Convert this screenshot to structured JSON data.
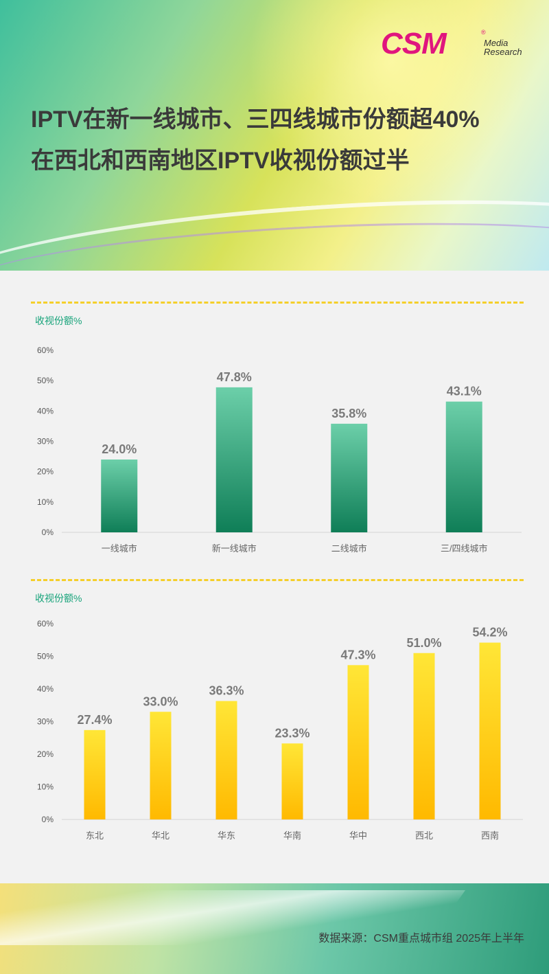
{
  "logo": {
    "brand": "CSM",
    "mark": "®",
    "line1": "Media",
    "line2": "Research"
  },
  "title": {
    "line1": "IPTV在新一线城市、三四线城市份额超40%",
    "line2": "在西北和西南地区IPTV收视份额过半"
  },
  "colors": {
    "green_top": "#6ccfa9",
    "green_bottom": "#0f7e57",
    "yellow_top": "#ffe637",
    "yellow_bottom": "#ffb900",
    "title_green": "#17a37a",
    "dashed": "#f5cf2a"
  },
  "chart_data": [
    {
      "type": "bar",
      "ylabel": "收视份额%",
      "ylim": [
        0,
        60
      ],
      "yticks": [
        "0%",
        "10%",
        "20%",
        "30%",
        "40%",
        "50%",
        "60%"
      ],
      "categories": [
        "一线城市",
        "新一线城市",
        "二线城市",
        "三/四线城市"
      ],
      "values": [
        24.0,
        47.8,
        35.8,
        43.1
      ],
      "labels": [
        "24.0%",
        "47.8%",
        "35.8%",
        "43.1%"
      ],
      "grid": false
    },
    {
      "type": "bar",
      "ylabel": "收视份额%",
      "ylim": [
        0,
        60
      ],
      "yticks": [
        "0%",
        "10%",
        "20%",
        "30%",
        "40%",
        "50%",
        "60%"
      ],
      "categories": [
        "东北",
        "华北",
        "华东",
        "华南",
        "华中",
        "西北",
        "西南"
      ],
      "values": [
        27.4,
        33.0,
        36.3,
        23.3,
        47.3,
        51.0,
        54.2
      ],
      "labels": [
        "27.4%",
        "33.0%",
        "36.3%",
        "23.3%",
        "47.3%",
        "51.0%",
        "54.2%"
      ],
      "grid": false
    }
  ],
  "footer": {
    "source": "数据来源：CSM重点城市组 2025年上半年"
  }
}
